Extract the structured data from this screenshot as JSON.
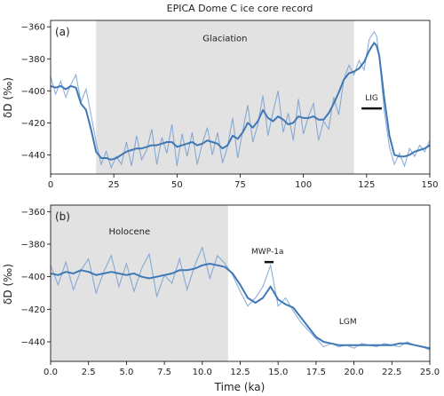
{
  "figure": {
    "title": "EPICA Dome C ice core record",
    "xlabel_shared": "Time (ka)"
  },
  "colors": {
    "raw": "#6f9bd0",
    "smooth": "#3f78b4",
    "shade": "#e2e2e2",
    "marker": "#111111"
  },
  "chart_data": [
    {
      "type": "line",
      "panel_label": "(a)",
      "ylabel": "δD (‰)",
      "xlim": [
        0,
        150
      ],
      "ylim": [
        -452,
        -356
      ],
      "xticks": [
        0,
        25,
        50,
        75,
        100,
        125,
        150
      ],
      "yticks": [
        -360,
        -380,
        -400,
        -420,
        -440
      ],
      "shaded_regions": [
        {
          "x0": 18,
          "x1": 120,
          "label": "Glaciation",
          "label_x": 69,
          "label_y": -369
        }
      ],
      "annotations": [
        {
          "text": "LIG",
          "bar_x0": 123,
          "bar_x1": 131,
          "bar_y": -411,
          "text_x": 127,
          "text_y": -406
        }
      ],
      "series": [
        {
          "kind": "raw",
          "x": [
            0,
            2,
            4,
            6,
            8,
            10,
            12,
            14,
            16,
            18,
            20,
            22,
            24,
            26,
            28,
            30,
            32,
            34,
            36,
            38,
            40,
            42,
            44,
            46,
            48,
            50,
            52,
            54,
            56,
            58,
            60,
            62,
            64,
            66,
            68,
            70,
            72,
            74,
            76,
            78,
            80,
            82,
            84,
            86,
            88,
            90,
            92,
            94,
            96,
            98,
            100,
            102,
            104,
            106,
            108,
            110,
            112,
            114,
            116,
            118,
            120,
            122,
            124,
            126,
            128,
            129,
            130,
            132,
            134,
            136,
            138,
            140,
            142,
            144,
            146,
            148,
            150
          ],
          "y": [
            -391,
            -402,
            -394,
            -404,
            -396,
            -390,
            -407,
            -399,
            -415,
            -432,
            -446,
            -438,
            -448,
            -441,
            -446,
            -432,
            -447,
            -428,
            -443,
            -437,
            -424,
            -446,
            -429,
            -439,
            -421,
            -447,
            -427,
            -441,
            -426,
            -446,
            -433,
            -423,
            -440,
            -426,
            -445,
            -435,
            -417,
            -442,
            -425,
            -409,
            -432,
            -421,
            -403,
            -428,
            -413,
            -400,
            -426,
            -414,
            -431,
            -405,
            -427,
            -416,
            -408,
            -431,
            -419,
            -424,
            -404,
            -415,
            -393,
            -384,
            -390,
            -381,
            -387,
            -368,
            -363,
            -366,
            -379,
            -413,
            -435,
            -446,
            -439,
            -447,
            -436,
            -441,
            -434,
            -438,
            -431
          ]
        },
        {
          "kind": "smooth",
          "x": [
            0,
            2,
            4,
            6,
            8,
            10,
            12,
            14,
            16,
            18,
            20,
            22,
            24,
            26,
            28,
            30,
            32,
            34,
            36,
            38,
            40,
            42,
            44,
            46,
            48,
            50,
            52,
            54,
            56,
            58,
            60,
            62,
            64,
            66,
            68,
            70,
            72,
            74,
            76,
            78,
            80,
            82,
            84,
            86,
            88,
            90,
            92,
            94,
            96,
            98,
            100,
            102,
            104,
            106,
            108,
            110,
            112,
            114,
            116,
            118,
            120,
            122,
            124,
            126,
            128,
            129,
            130,
            132,
            134,
            136,
            138,
            140,
            142,
            144,
            146,
            148,
            150
          ],
          "y": [
            -397,
            -398,
            -397,
            -399,
            -397,
            -398,
            -408,
            -412,
            -424,
            -438,
            -442,
            -442,
            -443,
            -442,
            -440,
            -438,
            -437,
            -436,
            -436,
            -435,
            -434,
            -434,
            -433,
            -432,
            -432,
            -435,
            -434,
            -433,
            -432,
            -434,
            -433,
            -431,
            -432,
            -433,
            -436,
            -434,
            -428,
            -430,
            -426,
            -420,
            -423,
            -419,
            -412,
            -417,
            -419,
            -416,
            -418,
            -421,
            -420,
            -416,
            -417,
            -417,
            -416,
            -418,
            -418,
            -414,
            -408,
            -401,
            -393,
            -389,
            -388,
            -386,
            -382,
            -375,
            -370,
            -372,
            -378,
            -405,
            -428,
            -440,
            -441,
            -441,
            -440,
            -438,
            -437,
            -436,
            -434
          ]
        }
      ]
    },
    {
      "type": "line",
      "panel_label": "(b)",
      "xlabel": "Time (ka)",
      "ylabel": "δD (‰)",
      "xlim": [
        0,
        25
      ],
      "ylim": [
        -452,
        -356
      ],
      "xticks": [
        0.0,
        2.5,
        5.0,
        7.5,
        10.0,
        12.5,
        15.0,
        17.5,
        20.0,
        22.5,
        25.0
      ],
      "xtick_labels": [
        "0.0",
        "2.5",
        "5.0",
        "7.5",
        "10.0",
        "12.5",
        "15.0",
        "17.5",
        "20.0",
        "22.5",
        "25.0"
      ],
      "yticks": [
        -360,
        -380,
        -400,
        -420,
        -440
      ],
      "shaded_regions": [
        {
          "x0": 0,
          "x1": 11.7,
          "label": "Holocene",
          "label_x": 5.2,
          "label_y": -374
        }
      ],
      "annotations": [
        {
          "text": "MWP-1a",
          "bar_x0": 14.1,
          "bar_x1": 14.7,
          "bar_y": -391,
          "text_x": 14.3,
          "text_y": -386
        },
        {
          "text": "LGM",
          "text_x": 19.6,
          "text_y": -429
        }
      ],
      "series": [
        {
          "kind": "raw",
          "x": [
            0,
            0.5,
            1,
            1.5,
            2,
            2.5,
            3,
            3.5,
            4,
            4.5,
            5,
            5.5,
            6,
            6.5,
            7,
            7.5,
            8,
            8.5,
            9,
            9.5,
            10,
            10.5,
            11,
            11.5,
            12,
            12.5,
            13,
            13.5,
            14,
            14.5,
            15,
            15.5,
            16,
            16.5,
            17,
            17.5,
            18,
            18.5,
            19,
            19.5,
            20,
            20.5,
            21,
            21.5,
            22,
            22.5,
            23,
            23.5,
            24,
            24.5,
            25
          ],
          "y": [
            -393,
            -405,
            -391,
            -408,
            -396,
            -389,
            -410,
            -397,
            -387,
            -406,
            -392,
            -409,
            -395,
            -386,
            -412,
            -399,
            -404,
            -389,
            -408,
            -393,
            -382,
            -401,
            -387,
            -392,
            -399,
            -409,
            -418,
            -413,
            -406,
            -393,
            -418,
            -413,
            -421,
            -428,
            -433,
            -438,
            -443,
            -441,
            -443,
            -442,
            -444,
            -441,
            -442,
            -443,
            -441,
            -442,
            -443,
            -440,
            -442,
            -443,
            -445
          ]
        },
        {
          "kind": "smooth",
          "x": [
            0,
            0.5,
            1,
            1.5,
            2,
            2.5,
            3,
            3.5,
            4,
            4.5,
            5,
            5.5,
            6,
            6.5,
            7,
            7.5,
            8,
            8.5,
            9,
            9.5,
            10,
            10.5,
            11,
            11.5,
            12,
            12.5,
            13,
            13.5,
            14,
            14.5,
            15,
            15.5,
            16,
            16.5,
            17,
            17.5,
            18,
            18.5,
            19,
            19.5,
            20,
            20.5,
            21,
            21.5,
            22,
            22.5,
            23,
            23.5,
            24,
            24.5,
            25
          ],
          "y": [
            -398,
            -399,
            -397,
            -398,
            -396,
            -397,
            -399,
            -398,
            -397,
            -398,
            -399,
            -398,
            -400,
            -401,
            -400,
            -399,
            -398,
            -396,
            -396,
            -395,
            -393,
            -392,
            -393,
            -394,
            -398,
            -405,
            -413,
            -416,
            -413,
            -406,
            -414,
            -417,
            -419,
            -425,
            -431,
            -437,
            -440,
            -441,
            -442,
            -442,
            -442,
            -442,
            -442,
            -442,
            -442,
            -442,
            -441,
            -441,
            -442,
            -443,
            -444
          ]
        }
      ]
    }
  ]
}
